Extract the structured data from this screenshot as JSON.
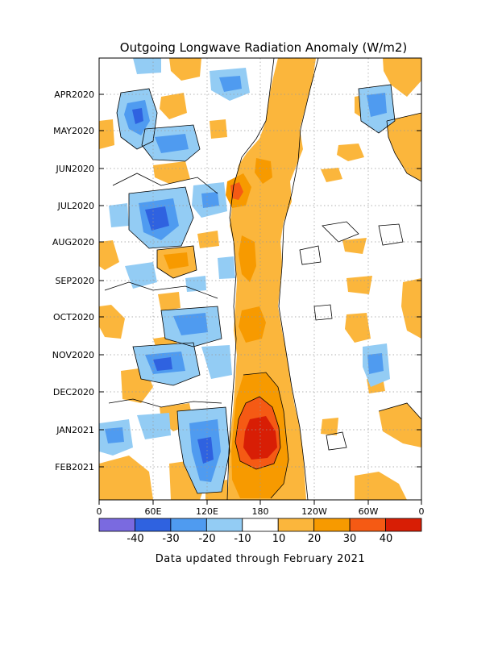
{
  "chart_data": {
    "type": "heatmap",
    "title": "Outgoing Longwave Radiation Anomaly (W/m2)",
    "x_tick_labels": [
      "0",
      "60E",
      "120E",
      "180",
      "120W",
      "60W",
      "0"
    ],
    "y_tick_labels": [
      "APR2020",
      "MAY2020",
      "JUN2020",
      "JUL2020",
      "AUG2020",
      "SEP2020",
      "OCT2020",
      "NOV2020",
      "DEC2020",
      "JAN2021",
      "FEB2021"
    ],
    "x_range": [
      "0",
      "0"
    ],
    "y_range": [
      "MAR2021",
      "MAR2020"
    ],
    "grid": true,
    "colorbar": {
      "tick_labels": [
        "-40",
        "-30",
        "-20",
        "-10",
        "10",
        "20",
        "30",
        "40"
      ],
      "colors": [
        "#7a6ae0",
        "#2f62e0",
        "#4f9bf0",
        "#93ccf4",
        "#ffffff",
        "#fbb63c",
        "#f79a00",
        "#f55a14",
        "#d81e05"
      ]
    },
    "features": [
      {
        "label": "180",
        "description": "persistent positive anomaly band near the date line, peaking above 40 in JAN2021"
      },
      {
        "label": "60E-120E",
        "description": "negative anomalies over the Indian Ocean and Maritime Continent"
      }
    ],
    "note": "Data updated through February 2021"
  }
}
